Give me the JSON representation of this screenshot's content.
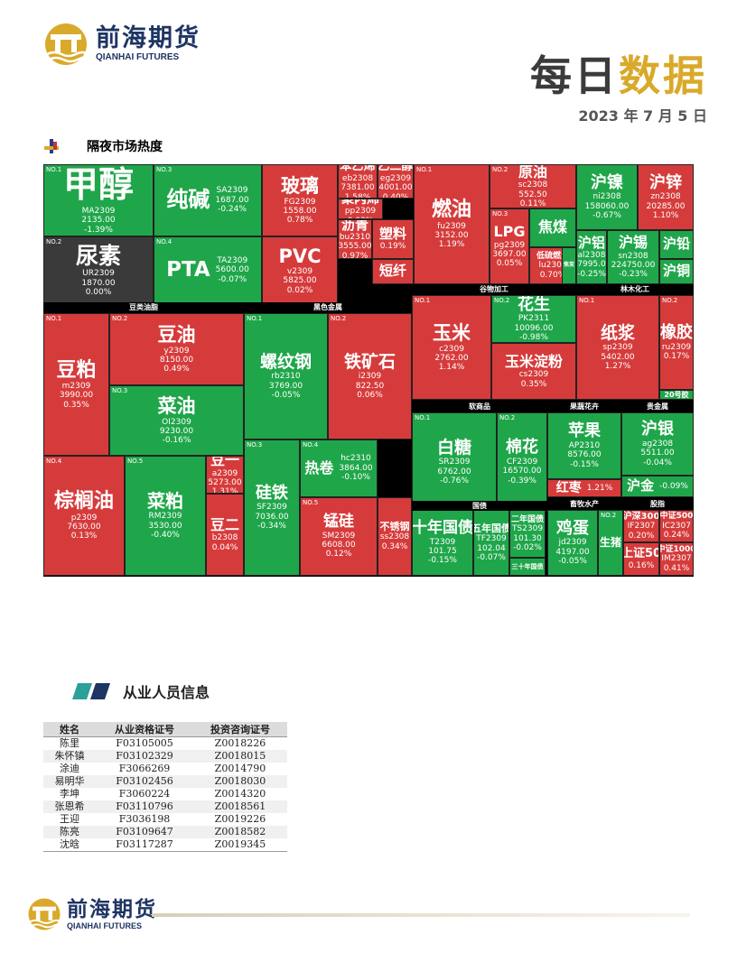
{
  "logo": {
    "cn": "前海期货",
    "en": "QIANHAI FUTURES"
  },
  "title": {
    "part1": "每日",
    "part2": "数据"
  },
  "date": "2023 年 7 月 5 日",
  "section1": {
    "title": "隔夜市场热度"
  },
  "treemap": {
    "colors": {
      "up": "#d63b3b",
      "down": "#1fa64a",
      "flat": "#3a3a3a",
      "header": "#000000"
    },
    "headers": [
      "豆类油脂",
      "黑色金属",
      "谷物加工",
      "林木化工",
      "软商品",
      "果蔬花卉",
      "贵金属",
      "国债",
      "畜牧水产",
      "股指"
    ],
    "tiles": [
      {
        "no": "NO.1",
        "name": "甲醇",
        "code": "MA2309",
        "price": "2135.00",
        "pct": "-1.39%",
        "dir": "down"
      },
      {
        "no": "NO.2",
        "name": "尿素",
        "code": "UR2309",
        "price": "1870.00",
        "pct": "0.00%",
        "dir": "flat"
      },
      {
        "no": "NO.3",
        "name": "纯碱",
        "code": "SA2309",
        "price": "1687.00",
        "pct": "-0.24%",
        "dir": "down"
      },
      {
        "no": "NO.4",
        "name": "PTA",
        "code": "TA2309",
        "price": "5600.00",
        "pct": "-0.07%",
        "dir": "down"
      },
      {
        "no": "",
        "name": "玻璃",
        "code": "FG2309",
        "price": "1558.00",
        "pct": "0.78%",
        "dir": "up"
      },
      {
        "no": "",
        "name": "PVC",
        "code": "v2309",
        "price": "5825.00",
        "pct": "0.02%",
        "dir": "up"
      },
      {
        "no": "",
        "name": "苯乙烯",
        "code": "eb2308",
        "price": "7381.00",
        "pct": "1.58%",
        "dir": "up"
      },
      {
        "no": "",
        "name": "乙二醇",
        "code": "eg2309",
        "price": "4001.00",
        "pct": "0.40%",
        "dir": "up"
      },
      {
        "no": "",
        "name": "聚丙烯",
        "code": "pp2309",
        "price": "",
        "pct": "0.03%",
        "dir": "up"
      },
      {
        "no": "",
        "name": "沥青",
        "code": "bu2310",
        "price": "3555.00",
        "pct": "0.97%",
        "dir": "up"
      },
      {
        "no": "",
        "name": "塑料",
        "code": "",
        "price": "",
        "pct": "0.19%",
        "dir": "up"
      },
      {
        "no": "",
        "name": "短纤",
        "code": "",
        "price": "",
        "pct": "",
        "dir": "up"
      },
      {
        "no": "NO.1",
        "name": "燃油",
        "code": "fu2309",
        "price": "3152.00",
        "pct": "1.19%",
        "dir": "up"
      },
      {
        "no": "NO.2",
        "name": "原油",
        "code": "sc2308",
        "price": "552.50",
        "pct": "0.11%",
        "dir": "up"
      },
      {
        "no": "NO.3",
        "name": "LPG",
        "code": "pg2309",
        "price": "3697.00",
        "pct": "0.05%",
        "dir": "up"
      },
      {
        "no": "",
        "name": "焦煤",
        "code": "",
        "price": "",
        "pct": "",
        "dir": "down"
      },
      {
        "no": "",
        "name": "低硫燃油",
        "code": "lu2309",
        "price": "",
        "pct": "0.70%",
        "dir": "up"
      },
      {
        "no": "",
        "name": "焦炭",
        "code": "",
        "price": "",
        "pct": "",
        "dir": "down"
      },
      {
        "no": "",
        "name": "沪镍",
        "code": "ni2308",
        "price": "158060.00",
        "pct": "-0.67%",
        "dir": "down"
      },
      {
        "no": "",
        "name": "沪锌",
        "code": "zn2308",
        "price": "20285.00",
        "pct": "1.10%",
        "dir": "up"
      },
      {
        "no": "",
        "name": "沪铝",
        "code": "al2308",
        "price": "17995.00",
        "pct": "-0.25%",
        "dir": "down"
      },
      {
        "no": "",
        "name": "沪锡",
        "code": "sn2308",
        "price": "224750.00",
        "pct": "-0.23%",
        "dir": "down"
      },
      {
        "no": "",
        "name": "沪铅",
        "code": "",
        "price": "",
        "pct": "",
        "dir": "down"
      },
      {
        "no": "",
        "name": "沪铜",
        "code": "",
        "price": "",
        "pct": "",
        "dir": "down"
      },
      {
        "no": "NO.1",
        "name": "豆粕",
        "code": "m2309",
        "price": "3990.00",
        "pct": "0.35%",
        "dir": "up"
      },
      {
        "no": "NO.2",
        "name": "豆油",
        "code": "y2309",
        "price": "8150.00",
        "pct": "0.49%",
        "dir": "up"
      },
      {
        "no": "NO.3",
        "name": "菜油",
        "code": "OI2309",
        "price": "9230.00",
        "pct": "-0.16%",
        "dir": "down"
      },
      {
        "no": "NO.4",
        "name": "棕榈油",
        "code": "p2309",
        "price": "7630.00",
        "pct": "0.13%",
        "dir": "up"
      },
      {
        "no": "NO.5",
        "name": "菜粕",
        "code": "RM2309",
        "price": "3530.00",
        "pct": "-0.40%",
        "dir": "down"
      },
      {
        "no": "",
        "name": "豆一",
        "code": "a2309",
        "price": "5273.00",
        "pct": "1.31%",
        "dir": "up"
      },
      {
        "no": "",
        "name": "豆二",
        "code": "b2308",
        "price": "",
        "pct": "0.04%",
        "dir": "up"
      },
      {
        "no": "NO.1",
        "name": "螺纹钢",
        "code": "rb2310",
        "price": "3769.00",
        "pct": "-0.05%",
        "dir": "down"
      },
      {
        "no": "NO.2",
        "name": "铁矿石",
        "code": "i2309",
        "price": "822.50",
        "pct": "0.06%",
        "dir": "up"
      },
      {
        "no": "NO.3",
        "name": "硅铁",
        "code": "SF2309",
        "price": "7036.00",
        "pct": "-0.34%",
        "dir": "down"
      },
      {
        "no": "NO.4",
        "name": "热卷",
        "code": "hc2310",
        "price": "3864.00",
        "pct": "-0.10%",
        "dir": "down"
      },
      {
        "no": "NO.5",
        "name": "锰硅",
        "code": "SM2309",
        "price": "6608.00",
        "pct": "0.12%",
        "dir": "up"
      },
      {
        "no": "",
        "name": "不锈钢",
        "code": "ss2308",
        "price": "",
        "pct": "0.34%",
        "dir": "up"
      },
      {
        "no": "NO.1",
        "name": "玉米",
        "code": "c2309",
        "price": "2762.00",
        "pct": "1.14%",
        "dir": "up"
      },
      {
        "no": "NO.2",
        "name": "花生",
        "code": "PK2311",
        "price": "10096.00",
        "pct": "-0.98%",
        "dir": "down"
      },
      {
        "no": "",
        "name": "玉米淀粉",
        "code": "cs2309",
        "price": "",
        "pct": "0.35%",
        "dir": "up"
      },
      {
        "no": "NO.1",
        "name": "纸浆",
        "code": "sp2309",
        "price": "5402.00",
        "pct": "1.27%",
        "dir": "up"
      },
      {
        "no": "NO.2",
        "name": "橡胶",
        "code": "ru2309",
        "price": "",
        "pct": "0.17%",
        "dir": "up"
      },
      {
        "no": "",
        "name": "20号胶",
        "code": "",
        "price": "",
        "pct": "",
        "dir": "down"
      },
      {
        "no": "NO.1",
        "name": "白糖",
        "code": "SR2309",
        "price": "6762.00",
        "pct": "-0.76%",
        "dir": "down"
      },
      {
        "no": "NO.2",
        "name": "棉花",
        "code": "CF2309",
        "price": "16570.00",
        "pct": "-0.39%",
        "dir": "down"
      },
      {
        "no": "",
        "name": "苹果",
        "code": "AP2310",
        "price": "8576.00",
        "pct": "-0.15%",
        "dir": "down"
      },
      {
        "no": "",
        "name": "红枣",
        "code": "",
        "price": "",
        "pct": "1.21%",
        "dir": "up"
      },
      {
        "no": "",
        "name": "沪银",
        "code": "ag2308",
        "price": "5511.00",
        "pct": "-0.04%",
        "dir": "down"
      },
      {
        "no": "",
        "name": "沪金",
        "code": "",
        "price": "",
        "pct": "-0.09%",
        "dir": "down"
      },
      {
        "no": "",
        "name": "十年国债",
        "code": "T2309",
        "price": "101.75",
        "pct": "-0.15%",
        "dir": "down"
      },
      {
        "no": "",
        "name": "五年国债",
        "code": "TF2309",
        "price": "102.04",
        "pct": "-0.07%",
        "dir": "down"
      },
      {
        "no": "",
        "name": "二年国债",
        "code": "TS2309",
        "price": "101.30",
        "pct": "-0.02%",
        "dir": "down"
      },
      {
        "no": "",
        "name": "三十年国债",
        "code": "",
        "price": "",
        "pct": "",
        "dir": "down"
      },
      {
        "no": "",
        "name": "鸡蛋",
        "code": "jd2309",
        "price": "4197.00",
        "pct": "-0.05%",
        "dir": "down"
      },
      {
        "no": "NO.2",
        "name": "生猪",
        "code": "",
        "price": "",
        "pct": "",
        "dir": "down"
      },
      {
        "no": "",
        "name": "沪深300",
        "code": "IF2307",
        "price": "",
        "pct": "0.20%",
        "dir": "up"
      },
      {
        "no": "",
        "name": "中证500",
        "code": "IC2307",
        "price": "",
        "pct": "0.24%",
        "dir": "up"
      },
      {
        "no": "",
        "name": "上证50",
        "code": "",
        "price": "",
        "pct": "0.16%",
        "dir": "up"
      },
      {
        "no": "",
        "name": "中证1000",
        "code": "IM2307",
        "price": "",
        "pct": "0.41%",
        "dir": "up"
      }
    ]
  },
  "section2": {
    "title": "从业人员信息"
  },
  "staff_table": {
    "headers": [
      "姓名",
      "从业资格证号",
      "投资咨询证号"
    ],
    "rows": [
      [
        "陈里",
        "F03105005",
        "Z0018226"
      ],
      [
        "朱怀镇",
        "F03102329",
        "Z0018015"
      ],
      [
        "涂迪",
        "F3066269",
        "Z0014790"
      ],
      [
        "易明华",
        "F03102456",
        "Z0018030"
      ],
      [
        "李坤",
        "F3060224",
        "Z0014320"
      ],
      [
        "张恩希",
        "F03110796",
        "Z0018561"
      ],
      [
        "王迎",
        "F3036198",
        "Z0019226"
      ],
      [
        "陈亮",
        "F03109647",
        "Z0018582"
      ],
      [
        "沈晗",
        "F03117287",
        "Z0019345"
      ]
    ]
  }
}
